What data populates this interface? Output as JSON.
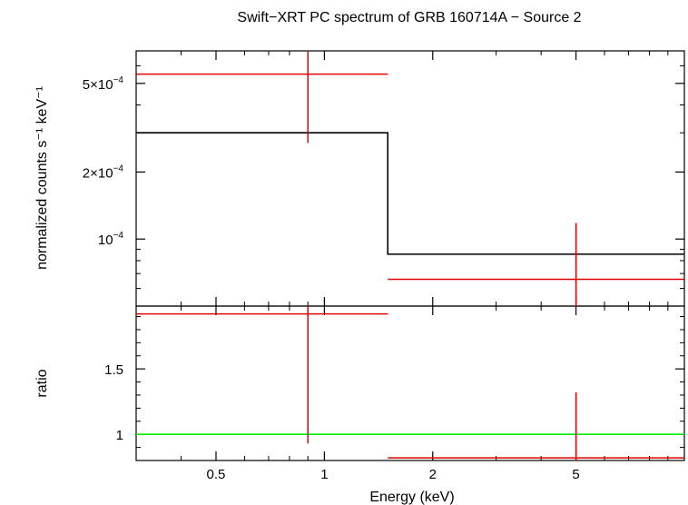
{
  "chart_data": {
    "type": "scatter",
    "title": "Swift−XRT PC spectrum of GRB 160714A − Source 2",
    "xlabel": "Energy (keV)",
    "x_scale": "log",
    "xlim": [
      0.3,
      10
    ],
    "x_ticks": [
      {
        "value": 0.5,
        "label": "0.5"
      },
      {
        "value": 1,
        "label": "1"
      },
      {
        "value": 2,
        "label": "2"
      },
      {
        "value": 5,
        "label": "5"
      }
    ],
    "grid": false,
    "colors": {
      "data": "#e00000",
      "model": "#000000",
      "unity": "#00ee00",
      "axes": "#000000"
    },
    "top_panel": {
      "ylabel": "normalized counts s⁻¹ keV⁻¹",
      "y_scale": "log",
      "ylim": [
        5e-05,
        0.0007
      ],
      "y_ticks": [
        {
          "value": 0.0001,
          "mantissa": "",
          "exponent": "−4"
        },
        {
          "value": 0.0002,
          "mantissa": "2×",
          "exponent": "−4"
        },
        {
          "value": 0.0005,
          "mantissa": "5×",
          "exponent": "−4"
        }
      ],
      "data": [
        {
          "x": 0.9,
          "x_lo": 0.3,
          "x_hi": 1.5,
          "y": 0.00055,
          "y_lo": 0.00027,
          "y_hi": 0.0007
        },
        {
          "x": 5.0,
          "x_lo": 1.5,
          "x_hi": 10.0,
          "y": 6.6e-05,
          "y_lo": 5e-05,
          "y_hi": 0.000118
        }
      ],
      "model": [
        {
          "x_lo": 0.3,
          "x_hi": 1.5,
          "y": 0.0003
        },
        {
          "x_lo": 1.5,
          "x_hi": 10.0,
          "y": 8.55e-05
        }
      ]
    },
    "bottom_panel": {
      "ylabel": "ratio",
      "y_scale": "linear",
      "ylim": [
        0.8,
        1.98
      ],
      "y_ticks": [
        {
          "value": 1,
          "label": "1"
        },
        {
          "value": 1.5,
          "label": "1.5"
        }
      ],
      "unity": 1,
      "data": [
        {
          "x": 0.9,
          "x_lo": 0.3,
          "x_hi": 1.5,
          "y": 1.92,
          "y_lo": 0.93,
          "y_hi": 1.98
        },
        {
          "x": 5.0,
          "x_lo": 1.5,
          "x_hi": 10.0,
          "y": 0.82,
          "y_lo": 0.8,
          "y_hi": 1.32
        }
      ]
    }
  }
}
